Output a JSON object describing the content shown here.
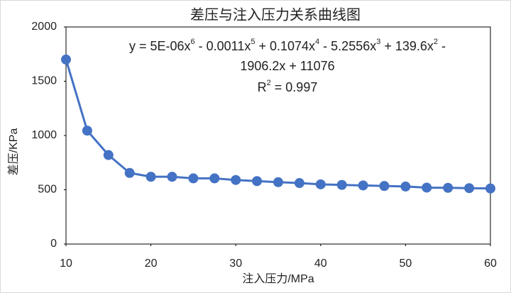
{
  "chart_data": {
    "type": "line",
    "title": "差压与注入压力关系曲线图",
    "x_label": "注入压力/MPa",
    "y_label": "差压/KPa",
    "x": [
      10,
      12.5,
      15,
      17.5,
      20,
      22.5,
      25,
      27.5,
      30,
      32.5,
      35,
      37.5,
      40,
      42.5,
      45,
      47.5,
      50,
      52.5,
      55,
      57.5,
      60
    ],
    "series": [
      {
        "name": "差压",
        "color": "#4472c4",
        "values": [
          1700,
          1045,
          820,
          655,
          620,
          620,
          605,
          605,
          590,
          580,
          570,
          562,
          550,
          545,
          540,
          535,
          530,
          520,
          518,
          515,
          512
        ]
      }
    ],
    "xlim": [
      10,
      60
    ],
    "xticks": [
      10,
      20,
      30,
      40,
      50,
      60
    ],
    "ylim": [
      0,
      2000
    ],
    "yticks": [
      0,
      500,
      1000,
      1500,
      2000
    ],
    "equation_lines": [
      [
        {
          "text": "y = 5E-06x",
          "sup": "6"
        },
        {
          "text": " - 0.0011x",
          "sup": "5"
        },
        {
          "text": " + 0.1074x",
          "sup": "4"
        },
        {
          "text": " - 5.2556x",
          "sup": "3"
        },
        {
          "text": " + 139.6x",
          "sup": "2"
        },
        {
          "text": " -"
        }
      ],
      [
        {
          "text": "1906.2x + 11076"
        }
      ],
      [
        {
          "text": "R",
          "sup": "2"
        },
        {
          "text": " = 0.997"
        }
      ]
    ]
  }
}
